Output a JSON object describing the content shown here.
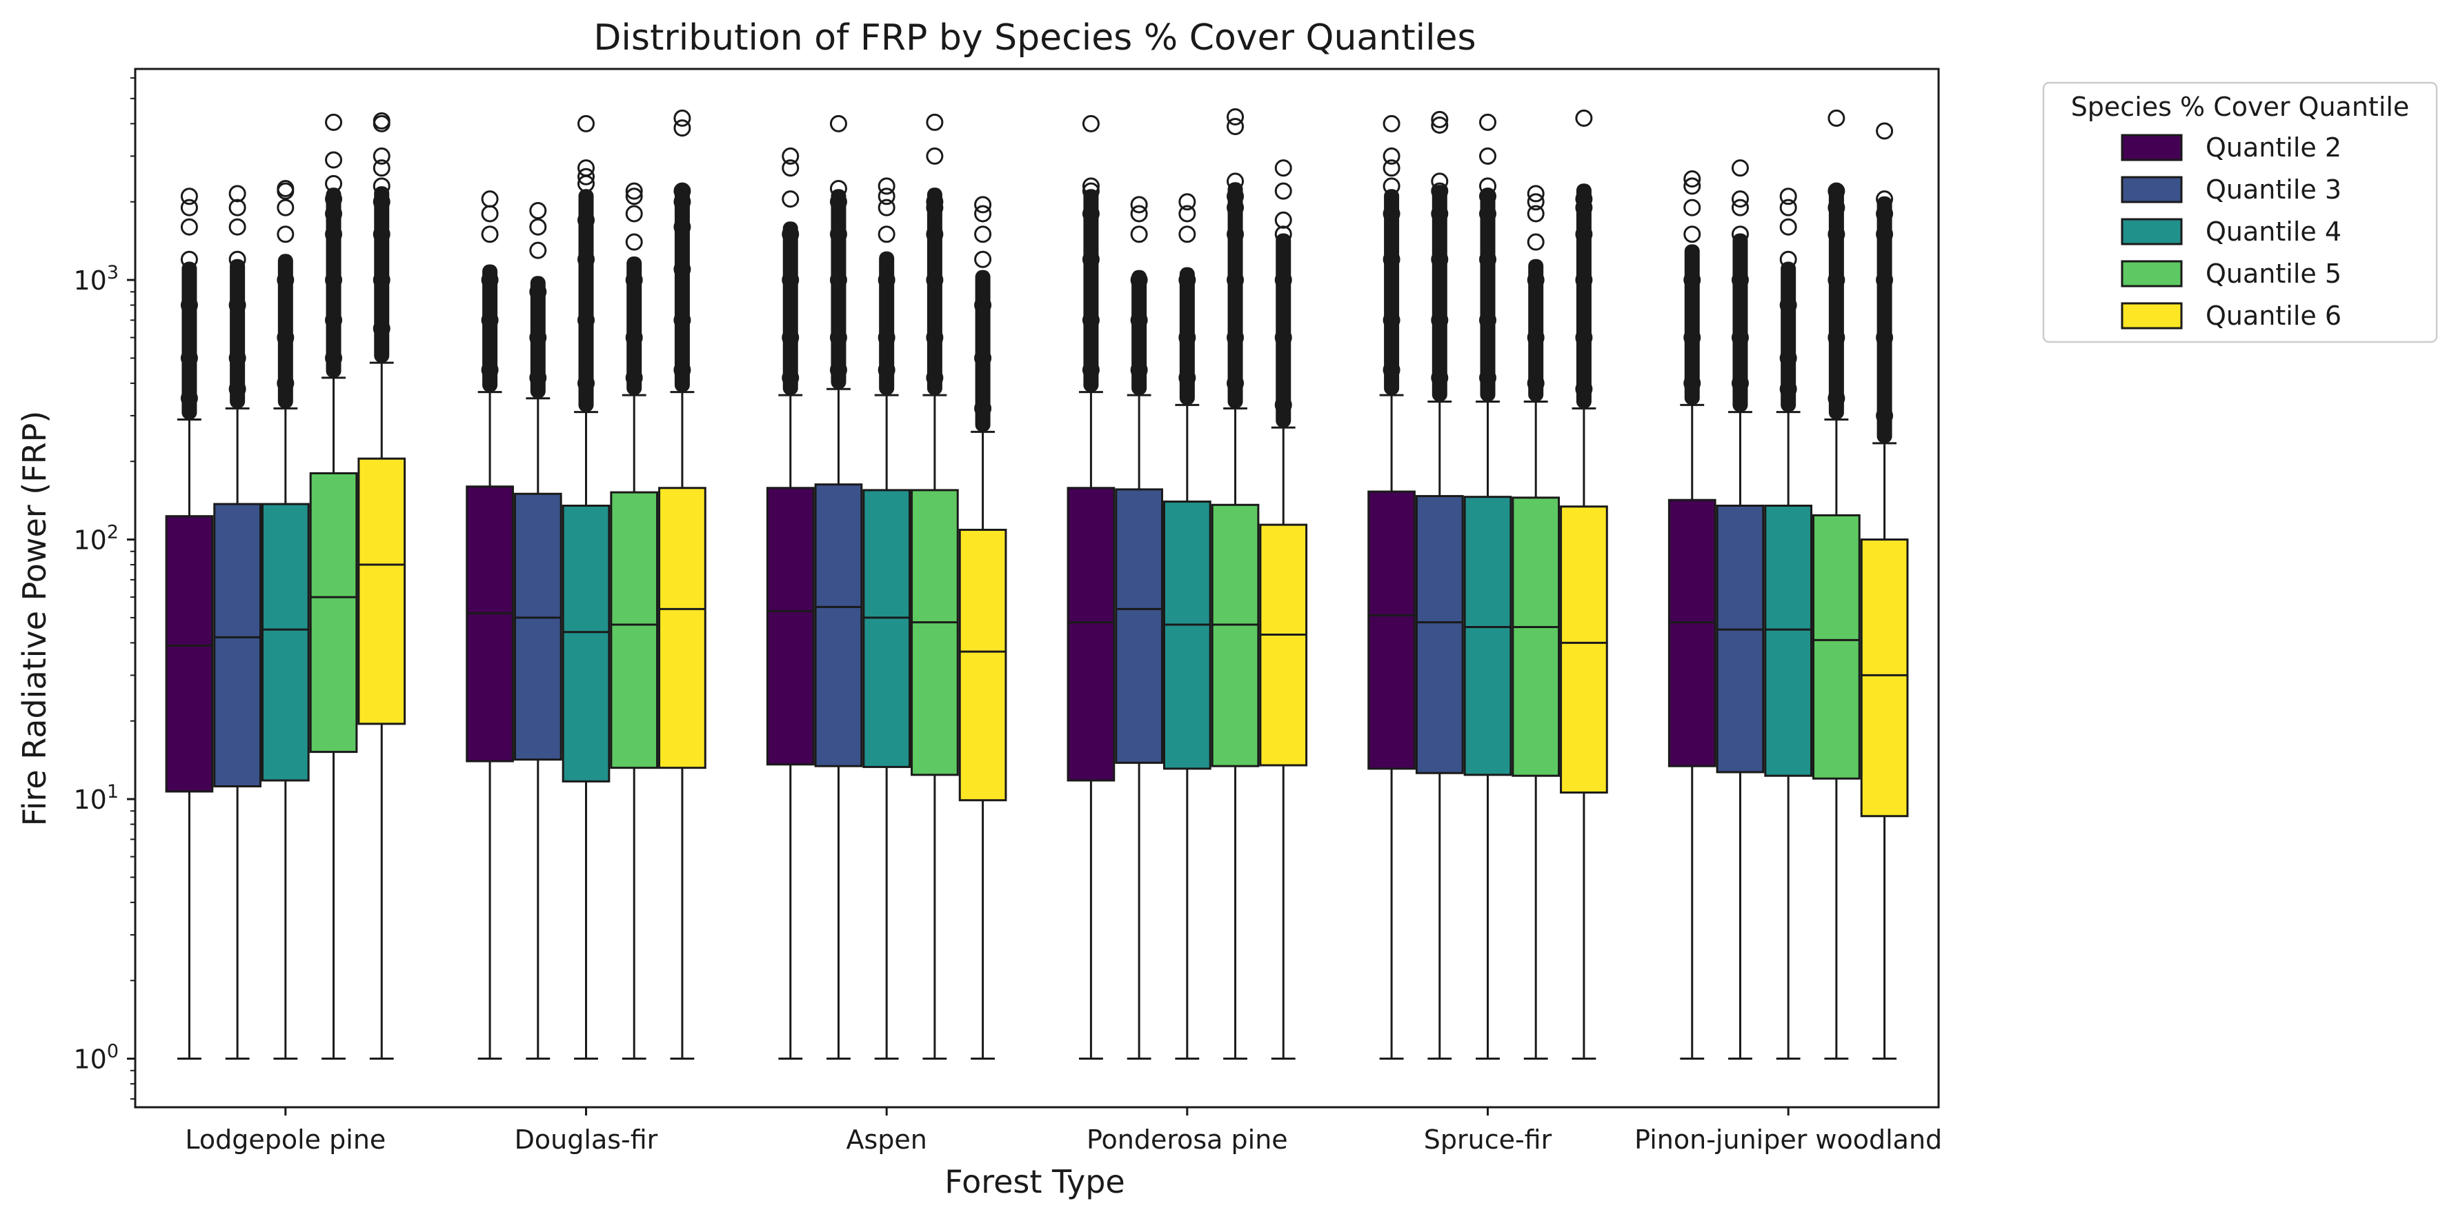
{
  "chart_data": {
    "type": "boxplot",
    "title": "Distribution of FRP by Species % Cover Quantiles",
    "xlabel": "Forest Type",
    "ylabel": "Fire Radiative Power (FRP)",
    "yscale": "log",
    "ylim": [
      0.65,
      6500
    ],
    "yticks": [
      {
        "value": 1,
        "base": "10",
        "exp": "0"
      },
      {
        "value": 10,
        "base": "10",
        "exp": "1"
      },
      {
        "value": 100,
        "base": "10",
        "exp": "2"
      },
      {
        "value": 1000,
        "base": "10",
        "exp": "3"
      }
    ],
    "categories": [
      "Lodgepole pine",
      "Douglas-fir",
      "Aspen",
      "Ponderosa pine",
      "Spruce-fir",
      "Pinon-juniper woodland"
    ],
    "legend": {
      "title": "Species % Cover Quantile",
      "position": "outside-top-right"
    },
    "series": [
      {
        "name": "Quantile 2",
        "color": "#440154",
        "boxes": [
          {
            "whislo": 1,
            "q1": 10.7,
            "med": 39,
            "q3": 123,
            "whishi": 290,
            "fliers": [
              2100,
              1900,
              1600,
              1200,
              800,
              500,
              350
            ]
          },
          {
            "whislo": 1,
            "q1": 14,
            "med": 52,
            "q3": 160,
            "whishi": 370,
            "fliers": [
              2050,
              1800,
              1500,
              1000,
              700,
              450
            ]
          },
          {
            "whislo": 1,
            "q1": 13.6,
            "med": 53,
            "q3": 158,
            "whishi": 360,
            "fliers": [
              3000,
              2700,
              2050,
              1500,
              1000,
              600,
              420
            ]
          },
          {
            "whislo": 1,
            "q1": 11.8,
            "med": 48,
            "q3": 158,
            "whishi": 370,
            "fliers": [
              4000,
              2300,
              2200,
              1800,
              1200,
              700,
              450
            ]
          },
          {
            "whislo": 1,
            "q1": 13.1,
            "med": 51,
            "q3": 153,
            "whishi": 360,
            "fliers": [
              4000,
              3000,
              2700,
              2300,
              1800,
              1200,
              700,
              450
            ]
          },
          {
            "whislo": 1,
            "q1": 13.4,
            "med": 48,
            "q3": 142,
            "whishi": 330,
            "fliers": [
              2450,
              2300,
              1900,
              1500,
              1000,
              600,
              400
            ]
          }
        ]
      },
      {
        "name": "Quantile 3",
        "color": "#3b528b",
        "boxes": [
          {
            "whislo": 1,
            "q1": 11.2,
            "med": 42,
            "q3": 137,
            "whishi": 320,
            "fliers": [
              2150,
              1900,
              1600,
              1200,
              800,
              500,
              380
            ]
          },
          {
            "whislo": 1,
            "q1": 14.2,
            "med": 50,
            "q3": 150,
            "whishi": 350,
            "fliers": [
              1850,
              1600,
              1300,
              900,
              600,
              420
            ]
          },
          {
            "whislo": 1,
            "q1": 13.4,
            "med": 55,
            "q3": 163,
            "whishi": 380,
            "fliers": [
              4000,
              2250,
              2000,
              1500,
              1000,
              600,
              450
            ]
          },
          {
            "whislo": 1,
            "q1": 13.8,
            "med": 54,
            "q3": 156,
            "whishi": 360,
            "fliers": [
              1950,
              1800,
              1500,
              1000,
              700,
              450
            ]
          },
          {
            "whislo": 1,
            "q1": 12.6,
            "med": 48,
            "q3": 147,
            "whishi": 340,
            "fliers": [
              4150,
              3950,
              2400,
              2200,
              1800,
              1200,
              700,
              420
            ]
          },
          {
            "whislo": 1,
            "q1": 12.7,
            "med": 45,
            "q3": 135,
            "whishi": 310,
            "fliers": [
              2700,
              2050,
              1900,
              1500,
              1000,
              600,
              400
            ]
          }
        ]
      },
      {
        "name": "Quantile 4",
        "color": "#21918c",
        "boxes": [
          {
            "whislo": 1,
            "q1": 11.8,
            "med": 45,
            "q3": 137,
            "whishi": 320,
            "fliers": [
              2250,
              2200,
              1900,
              1500,
              1000,
              600,
              400
            ]
          },
          {
            "whislo": 1,
            "q1": 11.7,
            "med": 44,
            "q3": 135,
            "whishi": 310,
            "fliers": [
              4000,
              2700,
              2500,
              2350,
              1700,
              1200,
              700,
              400
            ]
          },
          {
            "whislo": 1,
            "q1": 13.3,
            "med": 50,
            "q3": 155,
            "whishi": 360,
            "fliers": [
              2300,
              2100,
              1900,
              1500,
              1000,
              600,
              450
            ]
          },
          {
            "whislo": 1,
            "q1": 13.1,
            "med": 47,
            "q3": 140,
            "whishi": 330,
            "fliers": [
              2000,
              1800,
              1500,
              1000,
              600,
              420
            ]
          },
          {
            "whislo": 1,
            "q1": 12.4,
            "med": 46,
            "q3": 146,
            "whishi": 340,
            "fliers": [
              4050,
              3000,
              2300,
              2100,
              1800,
              1200,
              700,
              420
            ]
          },
          {
            "whislo": 1,
            "q1": 12.3,
            "med": 45,
            "q3": 135,
            "whishi": 310,
            "fliers": [
              2100,
              1900,
              1600,
              1200,
              800,
              500,
              380
            ]
          }
        ]
      },
      {
        "name": "Quantile 5",
        "color": "#5ec962",
        "boxes": [
          {
            "whislo": 1,
            "q1": 15.2,
            "med": 60,
            "q3": 180,
            "whishi": 420,
            "fliers": [
              4050,
              2900,
              2350,
              2050,
              1800,
              1500,
              1000,
              700,
              500
            ]
          },
          {
            "whislo": 1,
            "q1": 13.2,
            "med": 47,
            "q3": 152,
            "whishi": 360,
            "fliers": [
              2200,
              2100,
              1800,
              1400,
              1000,
              600,
              420
            ]
          },
          {
            "whislo": 1,
            "q1": 12.4,
            "med": 48,
            "q3": 155,
            "whishi": 360,
            "fliers": [
              4050,
              3000,
              2000,
              1900,
              1500,
              1000,
              600,
              420
            ]
          },
          {
            "whislo": 1,
            "q1": 13.4,
            "med": 47,
            "q3": 136,
            "whishi": 320,
            "fliers": [
              4250,
              3900,
              2400,
              2100,
              1900,
              1500,
              1000,
              600,
              400
            ]
          },
          {
            "whislo": 1,
            "q1": 12.3,
            "med": 46,
            "q3": 145,
            "whishi": 340,
            "fliers": [
              2150,
              2000,
              1800,
              1400,
              1000,
              600,
              400
            ]
          },
          {
            "whislo": 1,
            "q1": 12,
            "med": 41,
            "q3": 124,
            "whishi": 290,
            "fliers": [
              4200,
              2200,
              1900,
              1500,
              1000,
              600,
              350
            ]
          }
        ]
      },
      {
        "name": "Quantile 6",
        "color": "#fde725",
        "boxes": [
          {
            "whislo": 1,
            "q1": 19.5,
            "med": 80,
            "q3": 205,
            "whishi": 480,
            "fliers": [
              4100,
              4000,
              3000,
              2700,
              2300,
              2000,
              1500,
              1000,
              650
            ]
          },
          {
            "whislo": 1,
            "q1": 13.2,
            "med": 54,
            "q3": 158,
            "whishi": 370,
            "fliers": [
              4200,
              3850,
              2200,
              2000,
              1600,
              1100,
              700,
              450
            ]
          },
          {
            "whislo": 1,
            "q1": 9.9,
            "med": 37,
            "q3": 109,
            "whishi": 260,
            "fliers": [
              1950,
              1800,
              1500,
              1200,
              800,
              500,
              320
            ]
          },
          {
            "whislo": 1,
            "q1": 13.5,
            "med": 43,
            "q3": 114,
            "whishi": 270,
            "fliers": [
              2700,
              2200,
              1700,
              1500,
              1000,
              600,
              330
            ]
          },
          {
            "whislo": 1,
            "q1": 10.6,
            "med": 40,
            "q3": 134,
            "whishi": 320,
            "fliers": [
              4200,
              2050,
              1900,
              1500,
              1000,
              600,
              380
            ]
          },
          {
            "whislo": 1,
            "q1": 8.6,
            "med": 30,
            "q3": 100,
            "whishi": 235,
            "fliers": [
              3750,
              2050,
              1800,
              1500,
              1000,
              600,
              300
            ]
          }
        ]
      }
    ]
  }
}
